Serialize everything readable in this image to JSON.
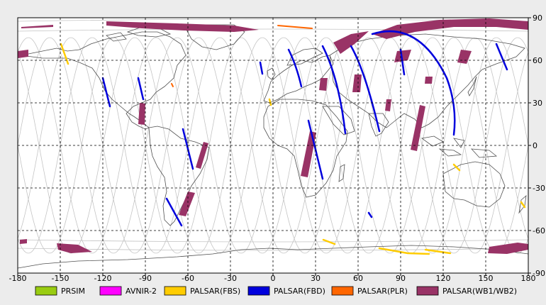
{
  "map": {
    "lon_ticks": [
      "-180",
      "-150",
      "-120",
      "-90",
      "-60",
      "-30",
      "0",
      "30",
      "60",
      "90",
      "120",
      "150",
      "180"
    ],
    "lat_ticks": [
      "90",
      "60",
      "30",
      "0",
      "-30",
      "-60",
      "-90"
    ],
    "lon_values": [
      -180,
      -150,
      -120,
      -90,
      -60,
      -30,
      0,
      30,
      60,
      90,
      120,
      150,
      180
    ],
    "lat_values": [
      90,
      60,
      30,
      0,
      -30,
      -60,
      -90
    ],
    "colors": {
      "background": "#ffffff",
      "grid": "#000000",
      "coast": "#505050",
      "orbit": "#bdbdbd"
    }
  },
  "legend": [
    {
      "label": "PRSIM",
      "color": "#99cc11"
    },
    {
      "label": "AVNIR-2",
      "color": "#ff00ff"
    },
    {
      "label": "PALSAR(FBS)",
      "color": "#ffcc00"
    },
    {
      "label": "PALSAR(FBD)",
      "color": "#0000dd"
    },
    {
      "label": "PALSAR(PLR)",
      "color": "#ff6600"
    },
    {
      "label": "PALSAR(WB1/WB2)",
      "color": "#993366"
    }
  ]
}
